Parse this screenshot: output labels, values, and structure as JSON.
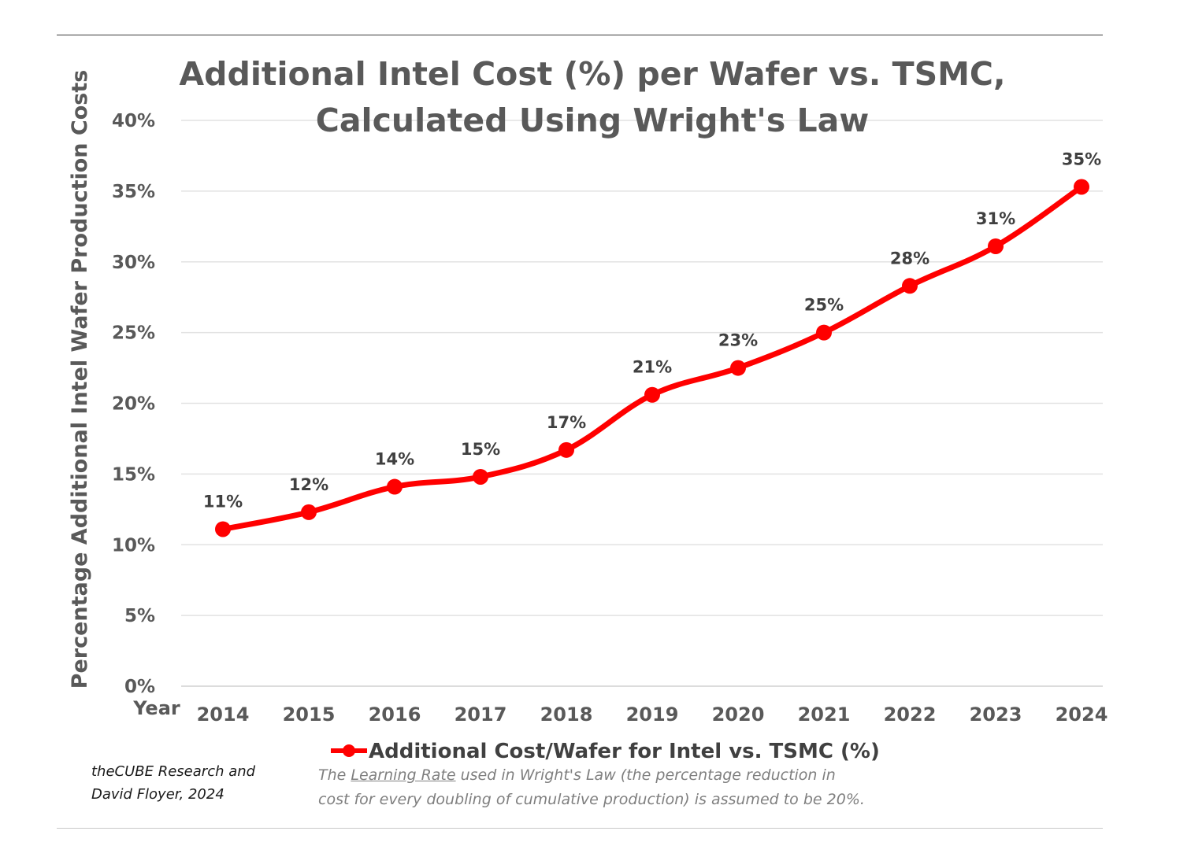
{
  "chart_data": {
    "type": "line",
    "title_lines": [
      "Additional Intel Cost (%) per Wafer vs. TSMC,",
      "Calculated Using Wright's Law"
    ],
    "ylabel": "Percentage Additional Intel Wafer Production Costs",
    "xlabel": "Year",
    "ylim": [
      0,
      40
    ],
    "yticks": [
      "0%",
      "5%",
      "10%",
      "15%",
      "20%",
      "25%",
      "30%",
      "35%",
      "40%"
    ],
    "grid": true,
    "legend_position": "bottom",
    "x": [
      "2014",
      "2015",
      "2016",
      "2017",
      "2018",
      "2019",
      "2020",
      "2021",
      "2022",
      "2023",
      "2024"
    ],
    "series": [
      {
        "name": "Additional Cost/Wafer for Intel vs. TSMC (%)",
        "color": "#ff0000",
        "values": [
          11.1,
          12.3,
          14.1,
          14.8,
          16.7,
          20.6,
          22.5,
          25.0,
          28.3,
          31.1,
          35.3
        ],
        "labels": [
          "11%",
          "12%",
          "14%",
          "15%",
          "17%",
          "21%",
          "23%",
          "25%",
          "28%",
          "31%",
          "35%"
        ]
      }
    ]
  },
  "credit": {
    "line1": "theCUBE Research and",
    "line2": "David Floyer, 2024"
  },
  "footnote": {
    "pre": "The ",
    "link": "Learning Rate",
    "post": " used in Wright's Law (the percentage reduction in",
    "line2": "cost for every doubling of cumulative production) is assumed to be 20%."
  }
}
